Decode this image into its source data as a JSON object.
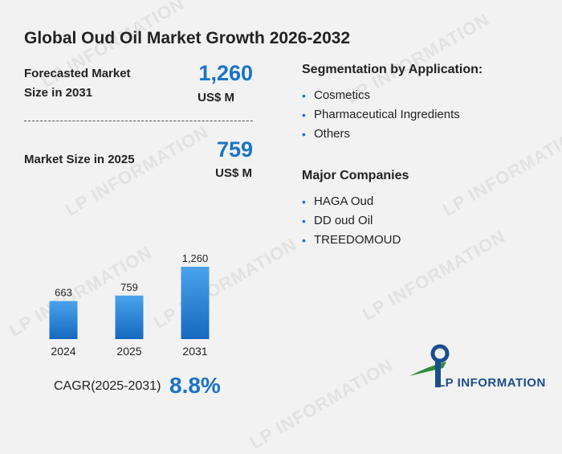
{
  "title": "Global Oud Oil Market Growth 2026-2032",
  "forecast": {
    "label": "Forecasted Market Size in 2031",
    "value": "1,260",
    "unit": "US$ M"
  },
  "current": {
    "label": "Market Size in 2025",
    "value": "759",
    "unit": "US$ M"
  },
  "segmentation": {
    "heading": "Segmentation by Application:",
    "items": [
      "Cosmetics",
      "Pharmaceutical Ingredients",
      "Others"
    ]
  },
  "companies": {
    "heading": "Major Companies",
    "items": [
      "HAGA Oud",
      "DD oud Oil",
      "TREEDOMOUD"
    ]
  },
  "cagr": {
    "label": "CAGR(2025-2031)",
    "value": "8.8%"
  },
  "logo": {
    "text": "LP INFORMATION"
  },
  "watermark": "LP INFORMATION",
  "colors": {
    "accent": "#1a73c8",
    "bar_top": "#4aa3ec",
    "bar_bottom": "#1669bf",
    "logo_green": "#2e8b3a",
    "logo_blue": "#1b4e8c"
  },
  "chart_data": {
    "type": "bar",
    "categories": [
      "2024",
      "2025",
      "2031"
    ],
    "values": [
      663,
      759,
      1260
    ],
    "value_labels": [
      "663",
      "759",
      "1,260"
    ],
    "title": "",
    "xlabel": "",
    "ylabel": "",
    "ylim": [
      0,
      1260
    ],
    "grid": false
  }
}
